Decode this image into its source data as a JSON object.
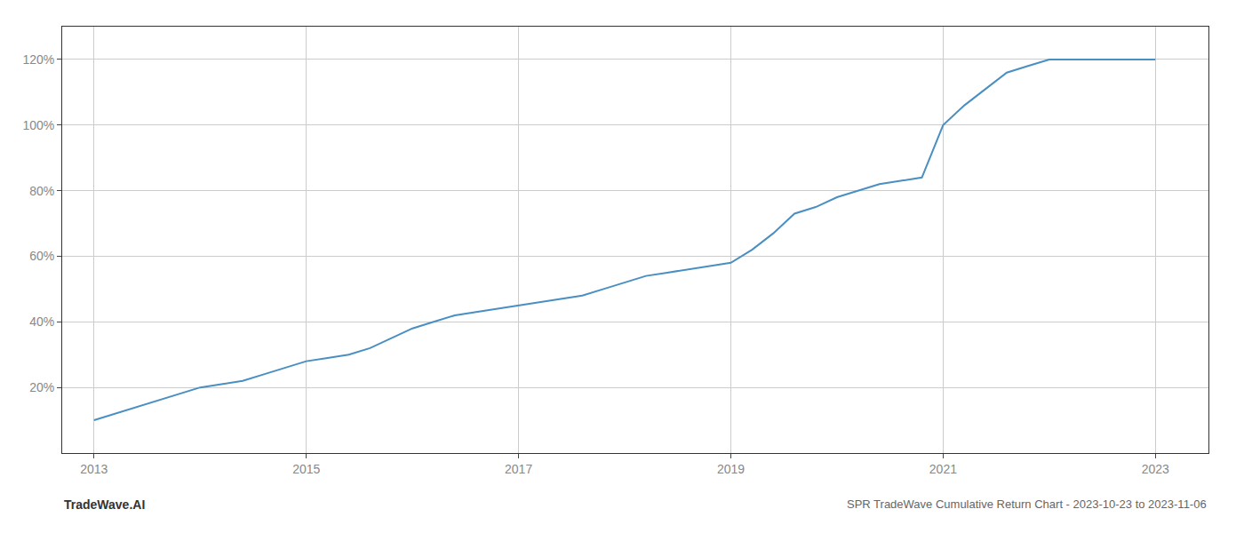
{
  "chart_data": {
    "type": "line",
    "title": "SPR TradeWave Cumulative Return Chart - 2023-10-23 to 2023-11-06",
    "annotations": [
      {
        "text": "TradeWave.AI"
      }
    ],
    "x": [
      2013.0,
      2013.2,
      2013.4,
      2013.6,
      2013.8,
      2014.0,
      2014.2,
      2014.4,
      2014.6,
      2014.8,
      2015.0,
      2015.2,
      2015.4,
      2015.6,
      2015.8,
      2016.0,
      2016.2,
      2016.4,
      2016.6,
      2016.8,
      2017.0,
      2017.2,
      2017.4,
      2017.6,
      2017.8,
      2018.0,
      2018.2,
      2018.4,
      2018.6,
      2018.8,
      2019.0,
      2019.2,
      2019.4,
      2019.6,
      2019.8,
      2020.0,
      2020.2,
      2020.4,
      2020.6,
      2020.8,
      2021.0,
      2021.2,
      2021.4,
      2021.6,
      2021.8,
      2022.0,
      2022.5,
      2023.0
    ],
    "values": [
      10,
      12,
      14,
      16,
      18,
      20,
      21,
      22,
      24,
      26,
      28,
      29,
      30,
      32,
      35,
      38,
      40,
      42,
      43,
      44,
      45,
      46,
      47,
      48,
      50,
      52,
      54,
      55,
      56,
      57,
      58,
      62,
      67,
      73,
      75,
      78,
      80,
      82,
      83,
      84,
      100,
      106,
      111,
      116,
      118,
      120,
      120,
      120
    ],
    "color": "#4a8fc2",
    "xlim": [
      2012.7,
      2023.5
    ],
    "ylim": [
      0,
      130
    ],
    "xticks": [
      2013,
      2015,
      2017,
      2019,
      2021,
      2023
    ],
    "yticks": [
      {
        "value": 20,
        "label": "20%"
      },
      {
        "value": 40,
        "label": "40%"
      },
      {
        "value": 60,
        "label": "60%"
      },
      {
        "value": 80,
        "label": "80%"
      },
      {
        "value": 100,
        "label": "100%"
      },
      {
        "value": 120,
        "label": "120%"
      }
    ],
    "grid": true
  }
}
